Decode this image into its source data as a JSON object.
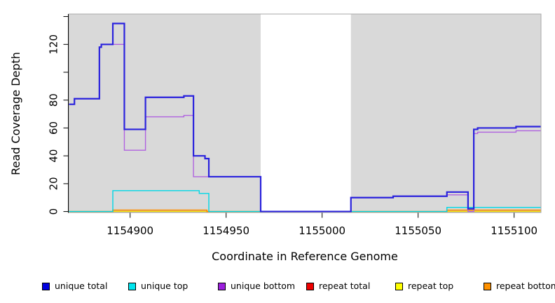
{
  "chart_data": {
    "type": "line",
    "subtype": "step-after",
    "title": "",
    "xlabel": "Coordinate in Reference Genome",
    "ylabel": "Read Coverage Depth",
    "xlim": [
      1154868,
      1155114
    ],
    "ylim": [
      -0.7,
      141.8
    ],
    "grid": false,
    "plot_bg_color": "#d9d9d9",
    "plot_border_color": "#a9a9a9",
    "axis_color": "#000000",
    "gap_region": {
      "x_start": 1154968,
      "x_end": 1155015,
      "color": "#ffffff"
    },
    "zero_line": {
      "value": 0,
      "color": "#7ccd7c"
    },
    "x_ticks": [
      {
        "coord": 1154900,
        "label": "1154900"
      },
      {
        "coord": 1154950,
        "label": "1154950"
      },
      {
        "coord": 1155000,
        "label": "1155000"
      },
      {
        "coord": 1155050,
        "label": "1155050"
      },
      {
        "coord": 1155100,
        "label": "1155100"
      }
    ],
    "y_ticks": [
      {
        "value": 0,
        "label": "0"
      },
      {
        "value": 20,
        "label": "20"
      },
      {
        "value": 40,
        "label": "40"
      },
      {
        "value": 60,
        "label": "60"
      },
      {
        "value": 80,
        "label": "80"
      },
      {
        "value": 100,
        "label": ""
      },
      {
        "value": 120,
        "label": "120"
      },
      {
        "value": 140,
        "label": ""
      }
    ],
    "series": [
      {
        "name": "repeat total",
        "color": "#e00000",
        "width": 1,
        "points": [
          [
            1154868,
            0
          ],
          [
            1155114,
            0
          ]
        ]
      },
      {
        "name": "repeat top",
        "color": "#ffff00",
        "width": 1,
        "points": [
          [
            1154868,
            0
          ],
          [
            1155114,
            0
          ]
        ]
      },
      {
        "name": "repeat bottom",
        "color": "#ff8c00",
        "width": 1.8,
        "points": [
          [
            1154868,
            0
          ],
          [
            1154891,
            1
          ],
          [
            1154940,
            0
          ],
          [
            1155065,
            1
          ],
          [
            1155114,
            1
          ]
        ]
      },
      {
        "name": "unique top",
        "color": "#00d8e6",
        "width": 1.4,
        "points": [
          [
            1154868,
            0
          ],
          [
            1154891,
            15
          ],
          [
            1154936,
            13
          ],
          [
            1154941,
            0
          ],
          [
            1155065,
            3
          ],
          [
            1155114,
            3
          ]
        ]
      },
      {
        "name": "unique bottom",
        "color": "#b062e0",
        "width": 1.4,
        "points": [
          [
            1154868,
            77
          ],
          [
            1154871,
            81
          ],
          [
            1154884,
            118
          ],
          [
            1154885,
            120
          ],
          [
            1154897,
            44
          ],
          [
            1154908,
            68
          ],
          [
            1154928,
            69
          ],
          [
            1154933,
            25
          ],
          [
            1154968,
            0
          ],
          [
            1155015,
            10
          ],
          [
            1155037,
            11
          ],
          [
            1155065,
            12
          ],
          [
            1155076,
            0
          ],
          [
            1155079,
            56
          ],
          [
            1155081,
            57
          ],
          [
            1155101,
            58
          ],
          [
            1155114,
            58
          ]
        ]
      },
      {
        "name": "unique total",
        "color": "#2a22dd",
        "width": 2.2,
        "points": [
          [
            1154868,
            77
          ],
          [
            1154871,
            81
          ],
          [
            1154884,
            118
          ],
          [
            1154885,
            120
          ],
          [
            1154891,
            135
          ],
          [
            1154897,
            59
          ],
          [
            1154908,
            82
          ],
          [
            1154928,
            83
          ],
          [
            1154933,
            40
          ],
          [
            1154939,
            38
          ],
          [
            1154941,
            25
          ],
          [
            1154968,
            0
          ],
          [
            1155015,
            10
          ],
          [
            1155037,
            11
          ],
          [
            1155065,
            14
          ],
          [
            1155076,
            2
          ],
          [
            1155079,
            59
          ],
          [
            1155081,
            60
          ],
          [
            1155101,
            61
          ],
          [
            1155114,
            61
          ]
        ]
      }
    ],
    "legend": {
      "position": "bottom",
      "entries": [
        {
          "label": "unique total",
          "color": "#0000e0"
        },
        {
          "label": "unique top",
          "color": "#00e5ee"
        },
        {
          "label": "unique bottom",
          "color": "#9c1fde"
        },
        {
          "label": "repeat total",
          "color": "#ee0000"
        },
        {
          "label": "repeat top",
          "color": "#ffff00"
        },
        {
          "label": "repeat bottom",
          "color": "#ff9100"
        }
      ]
    }
  }
}
